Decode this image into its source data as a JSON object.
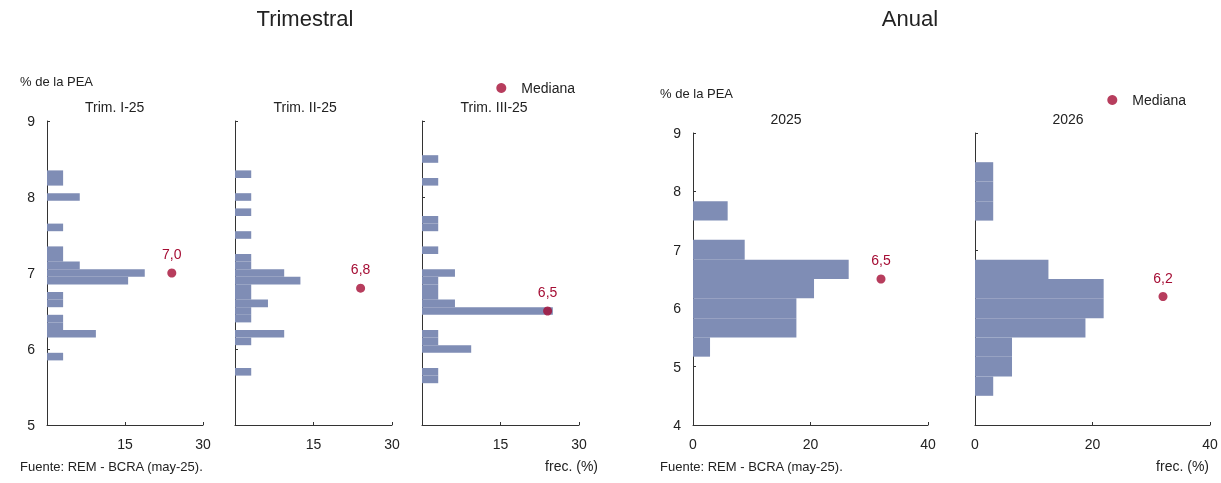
{
  "chart_data": [
    {
      "type": "histogram",
      "orientation": "horizontal",
      "title": "Trim. I-25",
      "ylabel": "% de la PEA",
      "annotations": [
        "Trimestral",
        "Fuente: REM - BCRA (may-25).",
        "7,0"
      ],
      "xlim": [
        0,
        30
      ],
      "xticks": [
        15,
        30
      ],
      "ylim": [
        5,
        9
      ],
      "yticks": [
        5,
        6,
        7,
        8,
        9
      ],
      "series": [
        {
          "color": "#7f8db5",
          "bins": [
            5.85,
            5.95,
            6.05,
            6.15,
            6.25,
            6.35,
            6.45,
            6.55,
            6.65,
            6.75,
            6.85,
            6.95,
            7.05,
            7.15,
            7.25,
            7.35,
            7.45,
            7.55,
            7.65,
            7.75,
            7.85,
            7.95,
            8.05,
            8.15,
            8.25,
            8.35
          ],
          "values": [
            3.1,
            0,
            0,
            9.4,
            3.1,
            3.1,
            0,
            3.1,
            3.1,
            0,
            15.6,
            18.8,
            6.3,
            3.1,
            3.1,
            0,
            0,
            3.1,
            0,
            0,
            0,
            6.3,
            0,
            3.1,
            3.1
          ]
        },
        {
          "type": "scatter",
          "color": "#a50d34",
          "x": [
            7.0
          ],
          "values": [
            24
          ]
        }
      ]
    },
    {
      "type": "histogram",
      "orientation": "horizontal",
      "title": "Trim. II-25",
      "annotations": [
        "6,8"
      ],
      "xlim": [
        0,
        30
      ],
      "xticks": [
        15,
        30
      ],
      "ylim": [
        5,
        9
      ],
      "yticks": [
        5,
        6,
        7,
        8,
        9
      ],
      "tick_labels": "x",
      "series": [
        {
          "color": "#7f8db5",
          "bins": [
            5.65,
            5.75,
            5.85,
            5.95,
            6.05,
            6.15,
            6.25,
            6.35,
            6.45,
            6.55,
            6.65,
            6.75,
            6.85,
            6.95,
            7.05,
            7.15,
            7.25,
            7.35,
            7.45,
            7.55,
            7.65,
            7.75,
            7.85,
            7.95,
            8.05,
            8.15,
            8.25,
            8.35
          ],
          "values": [
            3.1,
            0,
            0,
            0,
            3.1,
            9.4,
            0,
            3.1,
            3.1,
            6.3,
            3.1,
            3.1,
            12.5,
            9.4,
            3.1,
            3.1,
            0,
            0,
            3.1,
            0,
            0,
            3.1,
            0,
            3.1,
            0,
            0,
            3.1
          ]
        },
        {
          "type": "scatter",
          "color": "#a50d34",
          "x": [
            6.8
          ],
          "values": [
            24
          ]
        }
      ]
    },
    {
      "type": "histogram",
      "orientation": "horizontal",
      "title": "Trim. III-25",
      "xlabel": "frec. (%)",
      "annotations": [
        "6,5"
      ],
      "legend": "top right",
      "xlim": [
        0,
        30
      ],
      "xticks": [
        15,
        30
      ],
      "ylim": [
        5,
        9
      ],
      "yticks": [
        5,
        6,
        7,
        8,
        9
      ],
      "tick_labels": "x",
      "series": [
        {
          "color": "#7f8db5",
          "bins": [
            5.55,
            5.65,
            5.75,
            5.85,
            5.95,
            6.05,
            6.15,
            6.25,
            6.35,
            6.45,
            6.55,
            6.65,
            6.75,
            6.85,
            6.95,
            7.05,
            7.15,
            7.25,
            7.35,
            7.45,
            7.55,
            7.65,
            7.75,
            7.85,
            7.95,
            8.05,
            8.15,
            8.25,
            8.35,
            8.45,
            8.55
          ],
          "values": [
            3.1,
            3.1,
            0,
            0,
            9.4,
            3.1,
            3.1,
            0,
            0,
            25,
            6.3,
            3.1,
            3.1,
            3.1,
            6.3,
            0,
            0,
            3.1,
            0,
            0,
            3.1,
            3.1,
            0,
            0,
            0,
            0,
            3.1,
            0,
            0,
            3.1
          ]
        },
        {
          "type": "scatter",
          "name": "Mediana",
          "color": "#a50d34",
          "x": [
            6.5
          ],
          "values": [
            24
          ]
        }
      ]
    },
    {
      "type": "histogram",
      "orientation": "horizontal",
      "title": "2025",
      "ylabel": "% de la PEA",
      "annotations": [
        "Anual",
        "Fuente: REM - BCRA (may-25).",
        "6,5"
      ],
      "xlim": [
        0,
        40
      ],
      "xticks": [
        0,
        20,
        40
      ],
      "ylim": [
        4,
        9
      ],
      "yticks": [
        4,
        5,
        6,
        7,
        8,
        9
      ],
      "series": [
        {
          "color": "#7f8db5",
          "bins": [
            5.17,
            5.5,
            5.83,
            6.17,
            6.5,
            6.83,
            7.17,
            7.5,
            7.83
          ],
          "values": [
            2.9,
            17.6,
            17.6,
            20.6,
            26.5,
            8.8,
            0,
            5.9
          ]
        },
        {
          "type": "scatter",
          "color": "#a50d34",
          "x": [
            6.5
          ],
          "values": [
            32
          ]
        }
      ]
    },
    {
      "type": "histogram",
      "orientation": "horizontal",
      "title": "2026",
      "xlabel": "frec. (%)",
      "annotations": [
        "6,2"
      ],
      "legend": "top right",
      "xlim": [
        0,
        40
      ],
      "xticks": [
        0,
        20,
        40
      ],
      "ylim": [
        4,
        9
      ],
      "yticks": [
        4,
        5,
        6,
        7,
        8,
        9
      ],
      "tick_labels": "x",
      "series": [
        {
          "color": "#7f8db5",
          "bins": [
            4.5,
            4.83,
            5.17,
            5.5,
            5.83,
            6.17,
            6.5,
            6.83,
            7.5,
            7.83,
            8.17,
            8.5
          ],
          "values": [
            3.1,
            6.3,
            6.3,
            18.8,
            21.9,
            21.9,
            12.5,
            0,
            3.1,
            3.1,
            3.1
          ]
        },
        {
          "type": "scatter",
          "name": "Mediana",
          "color": "#a50d34",
          "x": [
            6.2
          ],
          "values": [
            32
          ]
        }
      ]
    }
  ]
}
